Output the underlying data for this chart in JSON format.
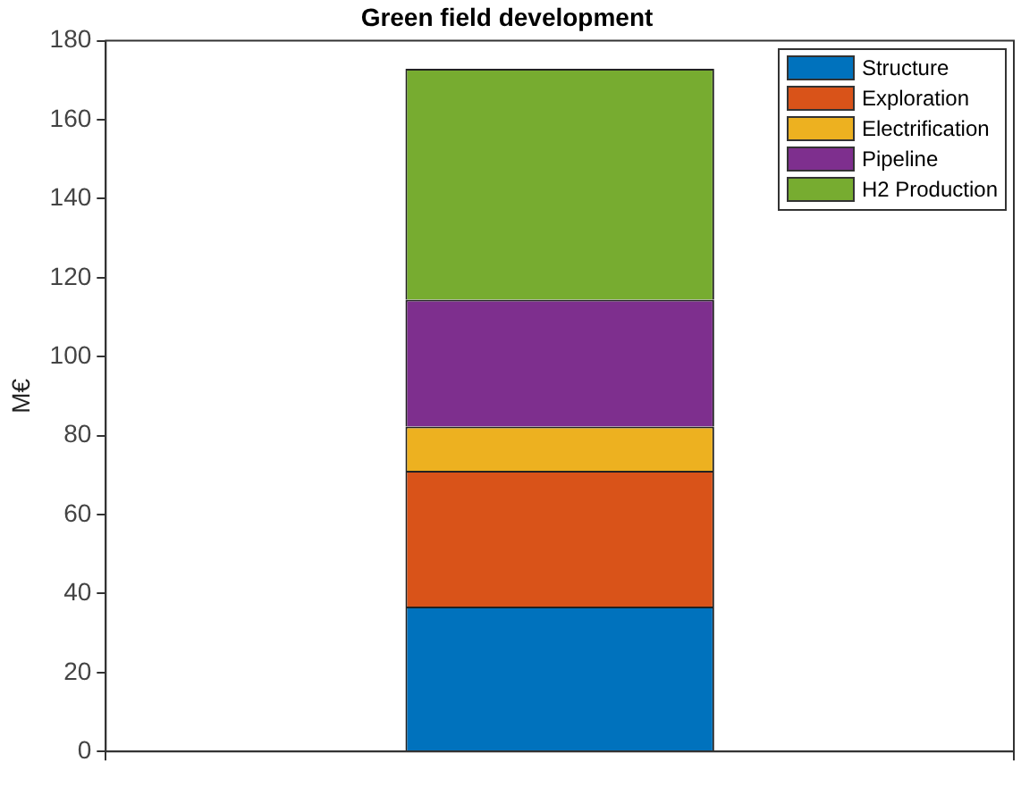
{
  "chart_data": {
    "type": "bar",
    "title": "Green field development",
    "ylabel": "M€",
    "stacked": true,
    "categories": [
      null
    ],
    "series": [
      {
        "name": "Structure",
        "color": "#0072bd",
        "values": [
          36.7
        ]
      },
      {
        "name": "Exploration",
        "color": "#d95319",
        "values": [
          34.4
        ]
      },
      {
        "name": "Electrification",
        "color": "#edb120",
        "values": [
          11.2
        ]
      },
      {
        "name": "Pipeline",
        "color": "#7e2f8e",
        "values": [
          32.1
        ]
      },
      {
        "name": "H2 Production",
        "color": "#77ac30",
        "values": [
          58.5
        ]
      }
    ],
    "ylim": [
      0,
      180
    ],
    "yticks": [
      0,
      20,
      40,
      60,
      80,
      100,
      120,
      140,
      160,
      180
    ],
    "grid": false,
    "legend": "top right"
  }
}
